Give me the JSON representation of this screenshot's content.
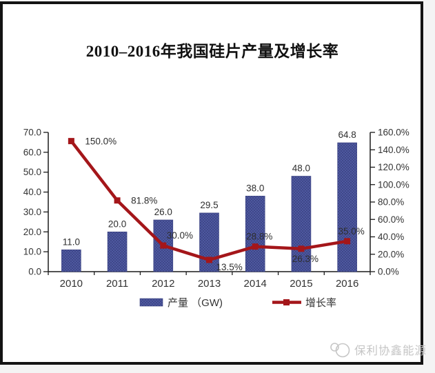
{
  "page": {
    "watermark": {
      "text": "保利协鑫能源",
      "logo": "gcl-mascot-logo",
      "color": "#c6c6c6"
    },
    "frame_color": "#141414",
    "background": "#ffffff"
  },
  "chart_data": {
    "type": "combo-bar-line",
    "title": "2010–2016年我国硅片产量及增长率",
    "categories": [
      "2010",
      "2011",
      "2012",
      "2013",
      "2014",
      "2015",
      "2016"
    ],
    "series": [
      {
        "name": "产量 （GW)",
        "type": "bar",
        "axis": "left",
        "values": [
          11.0,
          20.0,
          26.0,
          29.5,
          38.0,
          48.0,
          64.8
        ],
        "labels": [
          "11.0",
          "20.0",
          "26.0",
          "29.5",
          "38.0",
          "48.0",
          "64.8"
        ],
        "color": "#4e58a0",
        "dot_color": "#39417f"
      },
      {
        "name": "增长率",
        "type": "line",
        "axis": "right",
        "values": [
          150.0,
          81.8,
          30.0,
          13.5,
          28.8,
          26.3,
          35.0
        ],
        "labels": [
          "150.0%",
          "81.8%",
          "30.0%",
          "13.5%",
          "28.8%",
          "26.3%",
          "35.0%"
        ],
        "label_pos": [
          "right",
          "right",
          "above-right",
          "below-right",
          "above",
          "below",
          "above"
        ],
        "color": "#a4161a",
        "marker": "square"
      }
    ],
    "left_axis": {
      "min": 0,
      "max": 70,
      "step": 10,
      "tick_labels": [
        "0.0",
        "10.0",
        "20.0",
        "30.0",
        "40.0",
        "50.0",
        "60.0",
        "70.0"
      ]
    },
    "right_axis": {
      "min": 0,
      "max": 160,
      "step": 20,
      "tick_labels": [
        "0.0%",
        "20.0%",
        "40.0%",
        "60.0%",
        "80.0%",
        "100.0%",
        "120.0%",
        "140.0%",
        "160.0%"
      ]
    },
    "legend_position": "bottom",
    "grid": false
  }
}
